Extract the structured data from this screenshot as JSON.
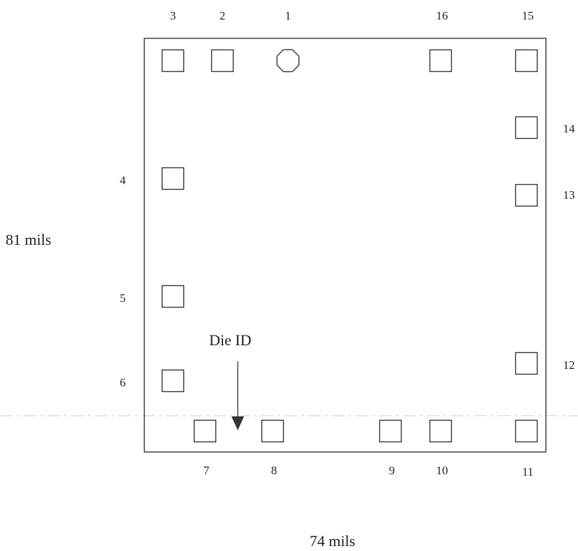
{
  "pins": [
    {
      "id": "1",
      "label": "1",
      "shape": "octagon"
    },
    {
      "id": "2",
      "label": "2",
      "shape": "square"
    },
    {
      "id": "3",
      "label": "3",
      "shape": "square"
    },
    {
      "id": "4",
      "label": "4",
      "shape": "square"
    },
    {
      "id": "5",
      "label": "5",
      "shape": "square"
    },
    {
      "id": "6",
      "label": "6",
      "shape": "square"
    },
    {
      "id": "7",
      "label": "7",
      "shape": "square"
    },
    {
      "id": "8",
      "label": "8",
      "shape": "square"
    },
    {
      "id": "9",
      "label": "9",
      "shape": "square"
    },
    {
      "id": "10",
      "label": "10",
      "shape": "square"
    },
    {
      "id": "11",
      "label": "11",
      "shape": "square"
    },
    {
      "id": "12",
      "label": "12",
      "shape": "square"
    },
    {
      "id": "13",
      "label": "13",
      "shape": "square"
    },
    {
      "id": "14",
      "label": "14",
      "shape": "square"
    },
    {
      "id": "15",
      "label": "15",
      "shape": "square"
    },
    {
      "id": "16",
      "label": "16",
      "shape": "square"
    }
  ],
  "dimensions": {
    "height": "81 mils",
    "width": "74 mils"
  },
  "die_id": {
    "label": "Die ID"
  }
}
